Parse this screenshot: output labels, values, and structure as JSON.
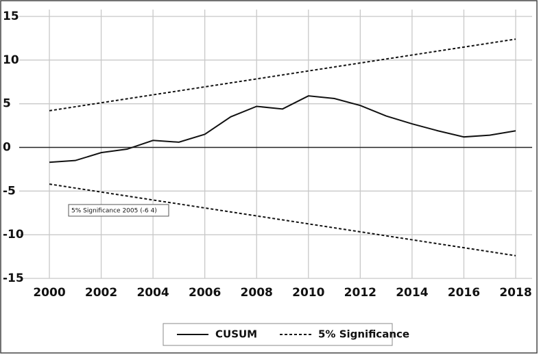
{
  "chart_data": {
    "type": "line",
    "annotation": "5% Significance 2005  (-6 4)",
    "series": [
      {
        "name": "CUSUM",
        "color": "#111111",
        "dash": false,
        "x": [
          2000,
          2001,
          2002,
          2003,
          2004,
          2005,
          2006,
          2007,
          2008,
          2009,
          2010,
          2011,
          2012,
          2013,
          2014,
          2015,
          2016,
          2017,
          2018
        ],
        "values": [
          -1.7,
          -1.5,
          -0.6,
          -0.2,
          0.8,
          0.6,
          1.5,
          3.5,
          4.7,
          4.4,
          5.9,
          5.6,
          4.8,
          3.6,
          2.7,
          1.9,
          1.2,
          1.4,
          1.9
        ]
      },
      {
        "name": "5% Significance",
        "color": "#111111",
        "dash": true,
        "x": [
          2000,
          2018
        ],
        "values": [
          4.2,
          12.4
        ],
        "lower": [
          -4.2,
          -12.4
        ]
      }
    ],
    "xlim": [
      2000,
      2018
    ],
    "xticks": [
      2000,
      2002,
      2004,
      2006,
      2008,
      2010,
      2012,
      2014,
      2016,
      2018
    ],
    "ylim": [
      -15,
      15
    ],
    "yticks": [
      -15,
      -10,
      -5,
      0,
      5,
      10,
      15
    ],
    "grid": true
  }
}
